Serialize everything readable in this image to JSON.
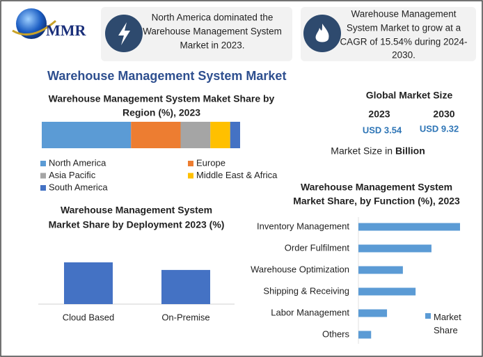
{
  "header": {
    "brand": "MMR",
    "note1": [
      "North America dominated the",
      "Warehouse Management System",
      "Market in 2023."
    ],
    "note2": [
      "Warehouse Management",
      "System Market to grow at a",
      "CAGR of 15.54% during 2024-",
      "2030."
    ],
    "title": "Warehouse Management System Market"
  },
  "market_size": {
    "title": "Global Market Size",
    "year1": "2023",
    "year2": "2030",
    "value1": "USD 3.54",
    "value2": "USD 9.32",
    "unit_prefix": "Market Size in",
    "unit": "Billion"
  },
  "chart_data": [
    {
      "type": "stacked-bar",
      "title": [
        "Warehouse Management System Maket Share by",
        "Region (%), 2023"
      ],
      "series": [
        {
          "name": "North America",
          "color": "#5b9bd5",
          "values": [
            45
          ]
        },
        {
          "name": "Europe",
          "color": "#ed7d31",
          "values": [
            25
          ]
        },
        {
          "name": "Asia Pacific",
          "color": "#a5a5a5",
          "values": [
            15
          ]
        },
        {
          "name": "Middle East & Africa",
          "color": "#ffc000",
          "values": [
            10
          ]
        },
        {
          "name": "South America",
          "color": "#4472c4",
          "values": [
            5
          ]
        }
      ]
    },
    {
      "type": "column",
      "title": [
        "Warehouse Management System",
        "Market Share by Deployment 2023 (%)"
      ],
      "categories": [
        "Cloud Based",
        "On-Premise"
      ],
      "values": [
        55,
        45
      ],
      "color": "#4472c4"
    },
    {
      "type": "hbar",
      "title": [
        "Warehouse Management System",
        "Market Share, by Function (%), 2023"
      ],
      "categories": [
        "Inventory Management",
        "Order Fulfilment",
        "Warehouse Optimization",
        "Shipping & Receiving",
        "Labor Management",
        "Others"
      ],
      "series": [
        {
          "name": "Market Share",
          "color": "#5b9bd5",
          "values": [
            32,
            23,
            14,
            18,
            9,
            4
          ]
        }
      ]
    }
  ]
}
